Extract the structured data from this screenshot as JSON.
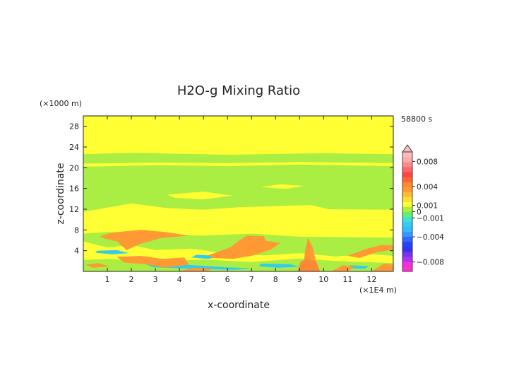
{
  "chart_data": {
    "type": "heatmap",
    "title": "H2O-g Mixing Ratio",
    "xlabel": "x-coordinate",
    "ylabel": "z-coordinate",
    "x_unit": "(×1E4 m)",
    "y_unit": "(×1000 m)",
    "time_label": "58800 s",
    "x_ticks": [
      "1",
      "2",
      "3",
      "4",
      "5",
      "6",
      "7",
      "8",
      "9",
      "10",
      "11",
      "12"
    ],
    "y_ticks": [
      "4",
      "8",
      "12",
      "16",
      "20",
      "24",
      "28"
    ],
    "xlim": [
      0,
      12.9
    ],
    "ylim": [
      0,
      30
    ],
    "colorbar": {
      "tick_labels": [
        "0.008",
        "0.004",
        "0.001",
        "0",
        "−0.001",
        "−0.004",
        "−0.008"
      ],
      "tick_values": [
        0.008,
        0.004,
        0.001,
        0,
        -0.001,
        -0.004,
        -0.008
      ],
      "range": [
        -0.0095,
        0.0095
      ],
      "colors": [
        "#ff33cc",
        "#ee33dd",
        "#aa33ee",
        "#7733ee",
        "#3333ee",
        "#2244ff",
        "#3366ff",
        "#3399ff",
        "#33bbff",
        "#33ccee",
        "#44dddd",
        "#66ee66",
        "#aaee44",
        "#ffff33",
        "#ffdd33",
        "#ffbb33",
        "#ff9933",
        "#ff8833",
        "#ff6633",
        "#ff4444",
        "#ff6666",
        "#ff8888",
        "#ffaaaa",
        "#ffbbbb"
      ]
    },
    "field_background": "#ffff33",
    "regions": [
      {
        "level": "green",
        "color": "#aaee44",
        "points": [
          [
            0,
            0
          ],
          [
            12.9,
            0
          ],
          [
            12.9,
            22.6
          ],
          [
            10,
            22.8
          ],
          [
            6,
            22.5
          ],
          [
            2,
            22.9
          ],
          [
            0,
            22.6
          ]
        ]
      },
      {
        "level": "yellow",
        "color": "#ffff33",
        "points": [
          [
            0,
            20.2
          ],
          [
            3,
            20.5
          ],
          [
            6,
            20.3
          ],
          [
            9,
            20.6
          ],
          [
            12.9,
            20.3
          ],
          [
            12.9,
            20.9
          ],
          [
            9,
            21.1
          ],
          [
            6,
            20.9
          ],
          [
            3,
            21.0
          ],
          [
            0,
            20.8
          ]
        ]
      },
      {
        "level": "yellow",
        "color": "#ffff33",
        "points": [
          [
            0,
            11.5
          ],
          [
            1,
            12.3
          ],
          [
            2,
            13.1
          ],
          [
            3.5,
            12.2
          ],
          [
            5,
            11.9
          ],
          [
            6.5,
            12.4
          ],
          [
            8,
            12.6
          ],
          [
            9.5,
            12.8
          ],
          [
            10.2,
            12.0
          ],
          [
            12.9,
            11.9
          ],
          [
            12.9,
            6.5
          ],
          [
            9,
            6.7
          ],
          [
            7,
            7.3
          ],
          [
            5,
            6.9
          ],
          [
            3,
            7.2
          ],
          [
            1,
            7.6
          ],
          [
            0,
            7.3
          ]
        ]
      },
      {
        "level": "yellow",
        "color": "#ffff33",
        "points": [
          [
            3.5,
            14.8
          ],
          [
            5,
            15.4
          ],
          [
            6.2,
            14.6
          ],
          [
            5,
            13.9
          ],
          [
            3.8,
            14.2
          ]
        ]
      },
      {
        "level": "yellow",
        "color": "#ffff33",
        "points": [
          [
            7.4,
            16.3
          ],
          [
            8.4,
            15.9
          ],
          [
            9.2,
            16.5
          ],
          [
            8.2,
            16.8
          ]
        ]
      },
      {
        "level": "yellow",
        "color": "#ffff33",
        "points": [
          [
            0,
            5.8
          ],
          [
            1,
            4.6
          ],
          [
            2,
            5.1
          ],
          [
            3,
            4.1
          ],
          [
            4.5,
            4.4
          ],
          [
            6,
            3.4
          ],
          [
            7.5,
            3.1
          ],
          [
            9,
            3.5
          ],
          [
            10.5,
            2.9
          ],
          [
            12,
            3.3
          ],
          [
            12.9,
            3.0
          ],
          [
            12.9,
            0
          ],
          [
            0,
            0
          ]
        ]
      },
      {
        "level": "green",
        "color": "#aaee44",
        "points": [
          [
            0,
            0
          ],
          [
            12.9,
            0
          ],
          [
            12.9,
            1.6
          ],
          [
            10.5,
            2.0
          ],
          [
            9,
            2.5
          ],
          [
            7,
            1.8
          ],
          [
            5,
            2.3
          ],
          [
            3,
            1.9
          ],
          [
            1,
            2.4
          ],
          [
            0,
            2.2
          ]
        ]
      },
      {
        "level": "cyan",
        "color": "#33ccee",
        "points": [
          [
            0.6,
            4.0
          ],
          [
            1.4,
            4.1
          ],
          [
            1.9,
            3.5
          ],
          [
            1.2,
            3.3
          ],
          [
            0.5,
            3.6
          ]
        ]
      },
      {
        "level": "cyan",
        "color": "#33ccee",
        "points": [
          [
            2.5,
            1.6
          ],
          [
            4.6,
            1.2
          ],
          [
            5.9,
            0.8
          ],
          [
            7,
            0.6
          ],
          [
            6.3,
            0.3
          ],
          [
            4.5,
            0.5
          ],
          [
            2.9,
            0.8
          ]
        ]
      },
      {
        "level": "cyan",
        "color": "#33ccee",
        "points": [
          [
            4.7,
            3.2
          ],
          [
            5.7,
            3.0
          ],
          [
            5.2,
            2.4
          ],
          [
            4.5,
            2.7
          ]
        ]
      },
      {
        "level": "cyan",
        "color": "#33ccee",
        "points": [
          [
            7.4,
            1.5
          ],
          [
            8.6,
            1.4
          ],
          [
            9,
            0.9
          ],
          [
            8.1,
            0.7
          ],
          [
            7.3,
            1.0
          ]
        ]
      },
      {
        "level": "cyan",
        "color": "#33ccee",
        "points": [
          [
            11.1,
            1.2
          ],
          [
            11.9,
            1.0
          ],
          [
            11.7,
            0.5
          ],
          [
            11,
            0.6
          ]
        ]
      },
      {
        "level": "orange",
        "color": "#ff9933",
        "points": [
          [
            0.7,
            6.8
          ],
          [
            1.2,
            7.5
          ],
          [
            2.4,
            8.0
          ],
          [
            3.4,
            7.6
          ],
          [
            4.4,
            6.9
          ],
          [
            3.2,
            6.4
          ],
          [
            2.3,
            5.2
          ],
          [
            1.8,
            4.1
          ],
          [
            1.4,
            5.8
          ],
          [
            0.9,
            6.3
          ]
        ]
      },
      {
        "level": "orange",
        "color": "#ff9933",
        "points": [
          [
            1.4,
            2.8
          ],
          [
            2.4,
            3.0
          ],
          [
            3.3,
            2.4
          ],
          [
            4.2,
            2.7
          ],
          [
            4.4,
            1.3
          ],
          [
            3.4,
            0.7
          ],
          [
            2.6,
            1.4
          ],
          [
            1.7,
            1.7
          ]
        ]
      },
      {
        "level": "orange",
        "color": "#ff9933",
        "points": [
          [
            5.2,
            3.1
          ],
          [
            6.1,
            4.6
          ],
          [
            6.5,
            6.0
          ],
          [
            6.8,
            6.9
          ],
          [
            7.5,
            6.8
          ],
          [
            7.6,
            5.9
          ],
          [
            8.2,
            5.5
          ],
          [
            7.8,
            4.2
          ],
          [
            7.0,
            3.0
          ],
          [
            6.2,
            2.4
          ],
          [
            5.4,
            2.6
          ]
        ]
      },
      {
        "level": "orange",
        "color": "#ff9933",
        "points": [
          [
            9.15,
            1.2
          ],
          [
            9.25,
            4.5
          ],
          [
            9.35,
            6.5
          ],
          [
            9.55,
            4.6
          ],
          [
            9.7,
            1.5
          ],
          [
            9.5,
            0.8
          ]
        ]
      },
      {
        "level": "orange",
        "color": "#ff9933",
        "points": [
          [
            11.0,
            3.0
          ],
          [
            11.8,
            4.4
          ],
          [
            12.4,
            5.1
          ],
          [
            12.9,
            5.0
          ],
          [
            12.9,
            4.2
          ],
          [
            12.2,
            3.7
          ],
          [
            11.5,
            2.6
          ]
        ]
      },
      {
        "level": "orange",
        "color": "#ff9933",
        "points": [
          [
            0.1,
            1.3
          ],
          [
            0.6,
            1.6
          ],
          [
            1.1,
            1.0
          ],
          [
            0.4,
            0.7
          ]
        ]
      },
      {
        "level": "orange",
        "color": "#ff9933",
        "points": [
          [
            3.9,
            0.0
          ],
          [
            4.6,
            0.7
          ],
          [
            5.4,
            0.5
          ],
          [
            5.1,
            0.0
          ]
        ]
      },
      {
        "level": "orange",
        "color": "#ff9933",
        "points": [
          [
            10.3,
            0.0
          ],
          [
            10.8,
            1.2
          ],
          [
            11.3,
            0.9
          ],
          [
            11.0,
            0.0
          ]
        ]
      },
      {
        "level": "orange",
        "color": "#ff9933",
        "points": [
          [
            12.0,
            0.0
          ],
          [
            12.5,
            1.5
          ],
          [
            12.9,
            1.3
          ],
          [
            12.9,
            0.0
          ]
        ]
      },
      {
        "level": "orange-dark",
        "color": "#ff8833",
        "points": [
          [
            8.9,
            0.0
          ],
          [
            9.05,
            1.9
          ],
          [
            9.3,
            2.4
          ],
          [
            9.7,
            1.9
          ],
          [
            9.85,
            0.0
          ]
        ]
      }
    ]
  }
}
